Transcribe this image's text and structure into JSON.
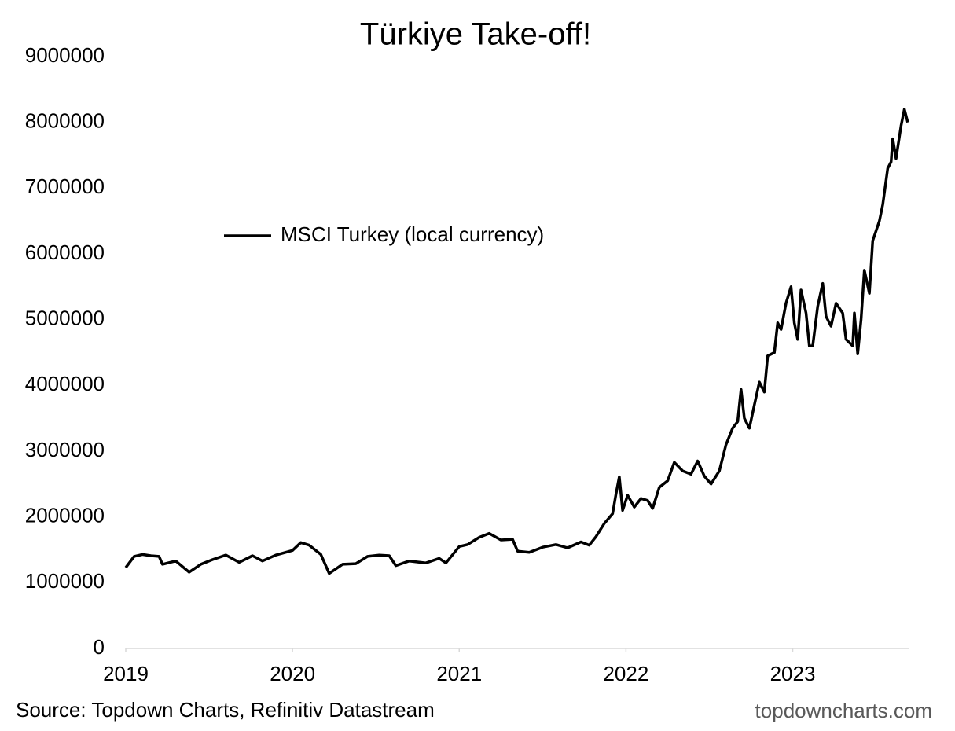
{
  "chart_data": {
    "type": "line",
    "title": "Türkiye Take-off!",
    "source": "Source: Topdown Charts, Refinitiv Datastream",
    "watermark": "topdowncharts.com",
    "x": [
      2019.0,
      2019.05,
      2019.1,
      2019.15,
      2019.2,
      2019.22,
      2019.3,
      2019.38,
      2019.45,
      2019.52,
      2019.6,
      2019.68,
      2019.76,
      2019.82,
      2019.9,
      2020.0,
      2020.05,
      2020.1,
      2020.17,
      2020.22,
      2020.3,
      2020.38,
      2020.45,
      2020.52,
      2020.58,
      2020.62,
      2020.7,
      2020.8,
      2020.88,
      2020.92,
      2021.0,
      2021.05,
      2021.12,
      2021.18,
      2021.25,
      2021.32,
      2021.35,
      2021.42,
      2021.5,
      2021.58,
      2021.65,
      2021.73,
      2021.78,
      2021.82,
      2021.87,
      2021.92,
      2021.94,
      2021.96,
      2021.98,
      2022.01,
      2022.05,
      2022.09,
      2022.13,
      2022.16,
      2022.2,
      2022.25,
      2022.29,
      2022.34,
      2022.39,
      2022.43,
      2022.47,
      2022.51,
      2022.56,
      2022.6,
      2022.64,
      2022.67,
      2022.69,
      2022.71,
      2022.74,
      2022.77,
      2022.8,
      2022.83,
      2022.85,
      2022.89,
      2022.91,
      2022.93,
      2022.96,
      2022.99,
      2023.01,
      2023.03,
      2023.05,
      2023.08,
      2023.1,
      2023.12,
      2023.15,
      2023.18,
      2023.2,
      2023.23,
      2023.26,
      2023.3,
      2023.32,
      2023.36,
      2023.37,
      2023.39,
      2023.41,
      2023.43,
      2023.46,
      2023.48,
      2023.52,
      2023.54,
      2023.57,
      2023.59,
      2023.6,
      2023.62,
      2023.65,
      2023.67,
      2023.69
    ],
    "series": [
      {
        "name": "MSCI Turkey (local currency)",
        "color": "#000000",
        "values": [
          1230000,
          1400000,
          1430000,
          1410000,
          1400000,
          1280000,
          1330000,
          1160000,
          1280000,
          1350000,
          1420000,
          1310000,
          1410000,
          1330000,
          1420000,
          1490000,
          1610000,
          1570000,
          1430000,
          1140000,
          1280000,
          1290000,
          1400000,
          1420000,
          1410000,
          1260000,
          1330000,
          1300000,
          1370000,
          1300000,
          1550000,
          1580000,
          1690000,
          1750000,
          1650000,
          1660000,
          1480000,
          1460000,
          1540000,
          1580000,
          1530000,
          1620000,
          1570000,
          1700000,
          1900000,
          2050000,
          2350000,
          2610000,
          2100000,
          2330000,
          2150000,
          2280000,
          2250000,
          2130000,
          2450000,
          2550000,
          2830000,
          2700000,
          2650000,
          2850000,
          2620000,
          2500000,
          2700000,
          3100000,
          3350000,
          3450000,
          3940000,
          3500000,
          3350000,
          3700000,
          4050000,
          3900000,
          4450000,
          4500000,
          4950000,
          4850000,
          5250000,
          5500000,
          4950000,
          4700000,
          5450000,
          5100000,
          4600000,
          4600000,
          5200000,
          5550000,
          5050000,
          4900000,
          5250000,
          5100000,
          4700000,
          4600000,
          5100000,
          4480000,
          5000000,
          5750000,
          5400000,
          6200000,
          6500000,
          6750000,
          7300000,
          7400000,
          7750000,
          7450000,
          7950000,
          8200000,
          8000000
        ]
      }
    ],
    "xlim": [
      2019,
      2023.7
    ],
    "xticks": [
      2019,
      2020,
      2021,
      2022,
      2023
    ],
    "ylim": [
      0,
      9000000
    ],
    "yticks": [
      0,
      1000000,
      2000000,
      3000000,
      4000000,
      5000000,
      6000000,
      7000000,
      8000000,
      9000000
    ],
    "grid": false
  }
}
